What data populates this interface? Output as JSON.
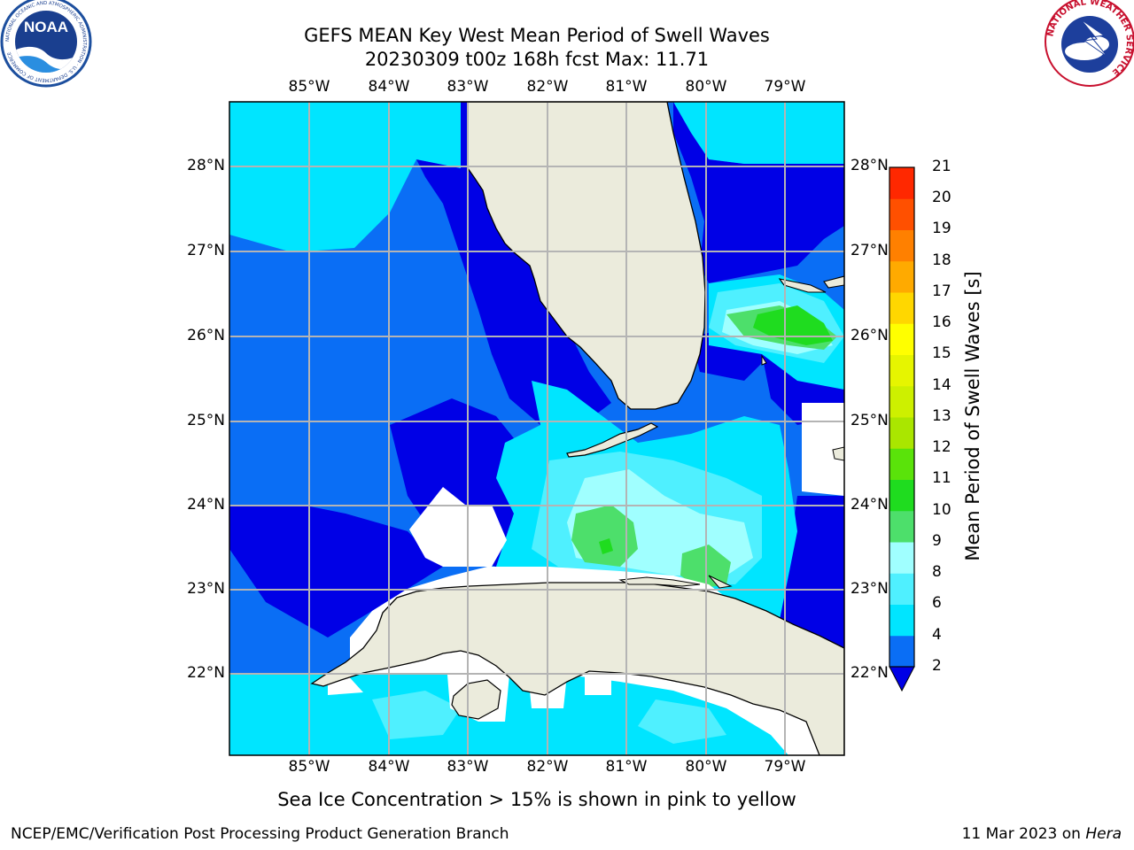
{
  "header": {
    "title_line1": "GEFS MEAN Key West Mean Period of Swell Waves",
    "title_line2": "20230309 t00z 168h fcst   Max: 11.71"
  },
  "logos": {
    "left": {
      "name": "noaa-logo",
      "text": "NOAA",
      "ring_text": "NATIONAL OCEANIC AND ATMOSPHERIC ADMINISTRATION · U.S. DEPARTMENT OF COMMERCE"
    },
    "right": {
      "name": "nws-logo",
      "ring_text": "NATIONAL WEATHER SERVICE"
    }
  },
  "map": {
    "lon_labels": [
      "85°W",
      "84°W",
      "83°W",
      "82°W",
      "81°W",
      "80°W",
      "79°W"
    ],
    "lat_labels": [
      "28°N",
      "27°N",
      "26°N",
      "25°N",
      "24°N",
      "23°N",
      "22°N"
    ],
    "land_color": "#ebebdc",
    "grid_color": "#b4b4b4"
  },
  "colorbar": {
    "title": "Mean Period of Swell Waves [s]",
    "levels": [
      "2",
      "4",
      "6",
      "8",
      "9",
      "10",
      "11",
      "12",
      "13",
      "14",
      "15",
      "16",
      "17",
      "18",
      "19",
      "20",
      "21"
    ],
    "colors": [
      "#0a6ef5",
      "#00e5ff",
      "#4ff0ff",
      "#a0ffff",
      "#4ddf6b",
      "#1fdc1f",
      "#5ae30a",
      "#aae600",
      "#cdf000",
      "#e6f500",
      "#ffff00",
      "#ffd700",
      "#ffaa00",
      "#ff8000",
      "#ff5000",
      "#ff2800",
      "#ff0000"
    ],
    "under_color": "#0000e6"
  },
  "footer": {
    "note": "Sea Ice Concentration > 15% is shown in pink to yellow",
    "left": "NCEP/EMC/Verification Post Processing Product Generation Branch",
    "right_prefix": "11 Mar 2023 on ",
    "right_italic": "Hera"
  }
}
